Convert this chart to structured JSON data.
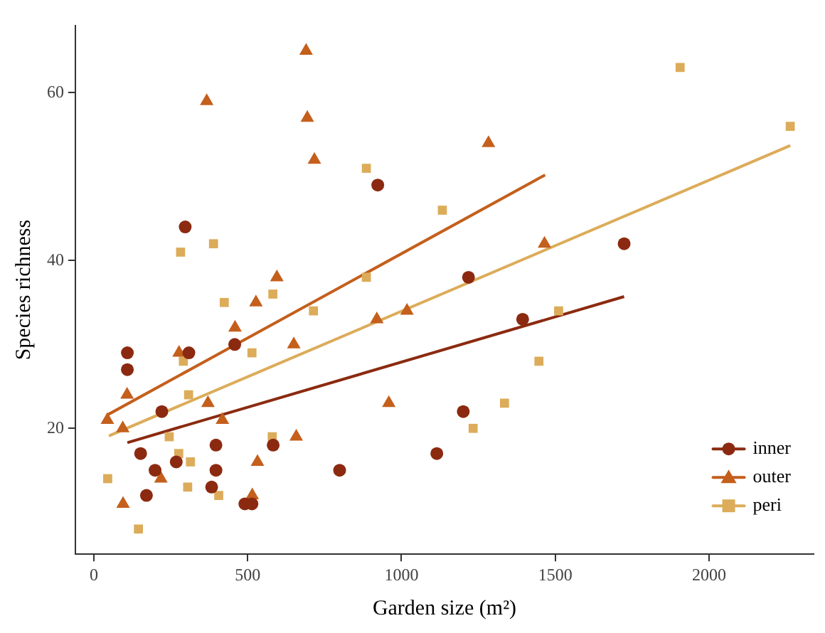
{
  "chart_data": {
    "type": "scatter",
    "xlabel": "Garden size (m²)",
    "ylabel": "Species richness",
    "xlim": [
      -60,
      2340
    ],
    "ylim": [
      5,
      68
    ],
    "xticks": [
      0,
      500,
      1000,
      1500,
      2000
    ],
    "yticks": [
      20,
      40,
      60
    ],
    "grid": false,
    "legend": "bottom right",
    "series": [
      {
        "name": "inner",
        "color": "#8b2a10",
        "marker": "circle",
        "x": [
          109,
          109,
          297,
          309,
          221,
          458,
          152,
          199,
          268,
          171,
          397,
          397,
          383,
          491,
          514,
          583,
          799,
          923,
          1218,
          1724,
          1394,
          1201,
          1115
        ],
        "values": [
          29,
          27,
          44,
          29,
          22,
          30,
          17,
          15,
          16,
          12,
          18,
          15,
          13,
          11,
          11,
          18,
          15,
          49,
          38,
          42,
          33,
          22,
          17
        ]
      },
      {
        "name": "outer",
        "color": "#c45f1c",
        "marker": "triangle",
        "x": [
          44,
          94,
          108,
          95,
          218,
          277,
          367,
          371,
          418,
          459,
          527,
          595,
          650,
          658,
          532,
          515,
          690,
          694,
          717,
          920,
          959,
          1018,
          1283,
          1465
        ],
        "values": [
          21,
          20,
          24,
          11,
          14,
          29,
          59,
          23,
          21,
          32,
          35,
          38,
          30,
          19,
          16,
          12,
          65,
          57,
          52,
          33,
          23,
          34,
          54,
          42
        ]
      },
      {
        "name": "peri",
        "color": "#dcac5a",
        "marker": "square",
        "x": [
          45,
          145,
          245,
          276,
          291,
          308,
          314,
          305,
          282,
          389,
          406,
          424,
          514,
          582,
          580,
          714,
          886,
          886,
          1133,
          1511,
          1447,
          1335,
          1233,
          1906,
          2264
        ],
        "values": [
          14,
          8,
          19,
          17,
          28,
          24,
          16,
          13,
          41,
          42,
          12,
          35,
          29,
          36,
          19,
          34,
          51,
          38,
          46,
          34,
          28,
          23,
          20,
          63,
          56
        ]
      },
      {
        "type": "line",
        "color": "#8b2a10",
        "marker": "none",
        "x": [
          109,
          1724
        ],
        "values": [
          18.3,
          35.7
        ]
      },
      {
        "type": "line",
        "color": "#c45f1c",
        "marker": "none",
        "x": [
          44,
          1467
        ],
        "values": [
          21.6,
          50.2
        ]
      },
      {
        "type": "line",
        "color": "#dcac5a",
        "marker": "none",
        "x": [
          49,
          2264
        ],
        "values": [
          19.1,
          53.7
        ]
      }
    ]
  }
}
